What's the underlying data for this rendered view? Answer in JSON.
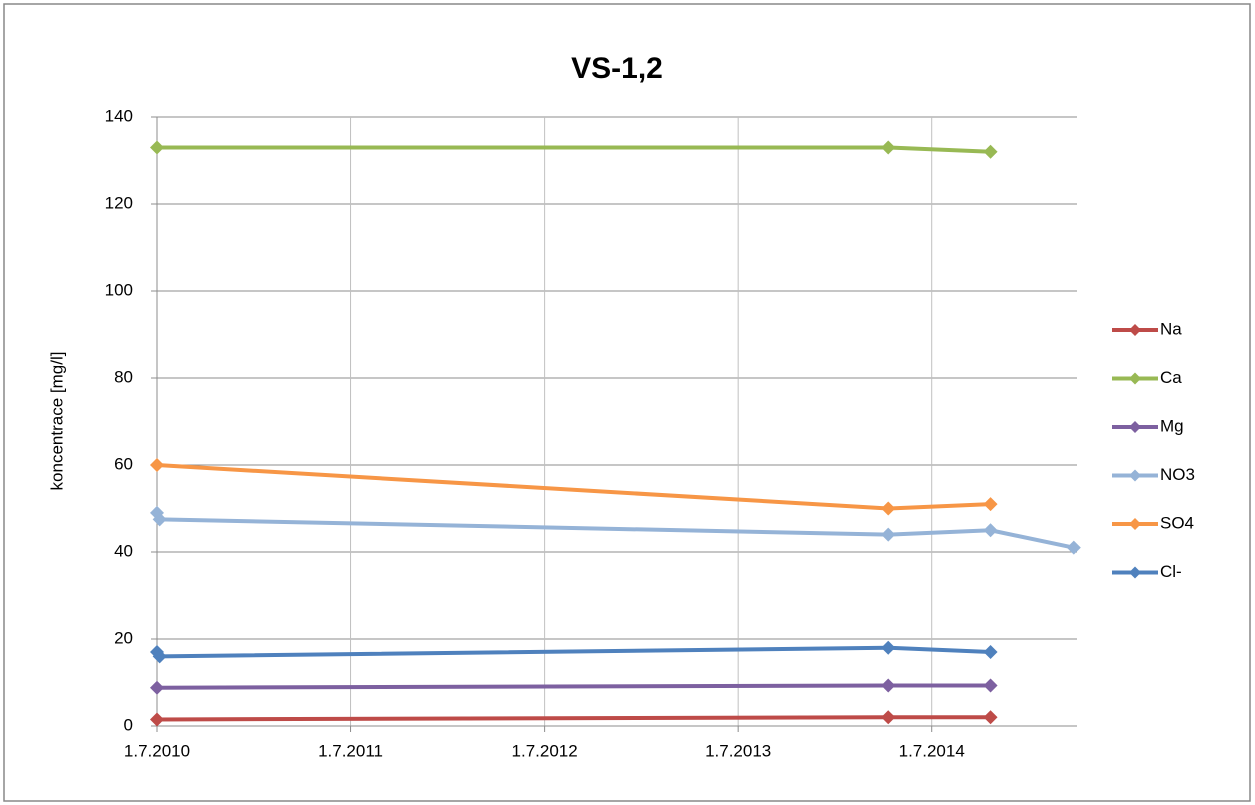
{
  "chart_data": {
    "type": "line",
    "title": "VS-1,2",
    "y_label": "koncentrace [mg/l]",
    "xlim": [
      "2010-07-01",
      "2015-04-01"
    ],
    "xticks": [
      {
        "value": "2010-07-01",
        "label": "1.7.2010"
      },
      {
        "value": "2011-07-01",
        "label": "1.7.2011"
      },
      {
        "value": "2012-07-01",
        "label": "1.7.2012"
      },
      {
        "value": "2013-07-01",
        "label": "1.7.2013"
      },
      {
        "value": "2014-07-01",
        "label": "1.7.2014"
      }
    ],
    "ylim": [
      0,
      140
    ],
    "yticks": [
      0,
      20,
      40,
      60,
      80,
      100,
      120,
      140
    ],
    "grid": true,
    "legend": "right",
    "series": [
      {
        "name": "Na",
        "color": "#be4b48",
        "x": [
          "2010-07-01",
          "2014-04-10",
          "2014-10-20"
        ],
        "values": [
          1.5,
          2,
          2
        ]
      },
      {
        "name": "Ca",
        "color": "#98b954",
        "x": [
          "2010-07-01",
          "2014-04-10",
          "2014-10-20"
        ],
        "values": [
          133,
          133,
          132
        ]
      },
      {
        "name": "Mg",
        "color": "#7d60a0",
        "x": [
          "2010-07-01",
          "2014-04-10",
          "2014-10-20"
        ],
        "values": [
          8.8,
          9.3,
          9.3
        ]
      },
      {
        "name": "NO3",
        "color": "#95b3d7",
        "x": [
          "2010-07-01",
          "2010-07-06",
          "2014-04-10",
          "2014-10-20",
          "2015-03-26"
        ],
        "values": [
          49,
          47.5,
          44,
          45,
          41
        ]
      },
      {
        "name": "SO4",
        "color": "#f79646",
        "x": [
          "2010-07-01",
          "2014-04-10",
          "2014-10-20"
        ],
        "values": [
          60,
          50,
          51
        ]
      },
      {
        "name": "Cl-",
        "color": "#4f81bd",
        "x": [
          "2010-07-01",
          "2010-07-06",
          "2014-04-10",
          "2014-10-20"
        ],
        "values": [
          17,
          16,
          18,
          17
        ]
      }
    ]
  }
}
